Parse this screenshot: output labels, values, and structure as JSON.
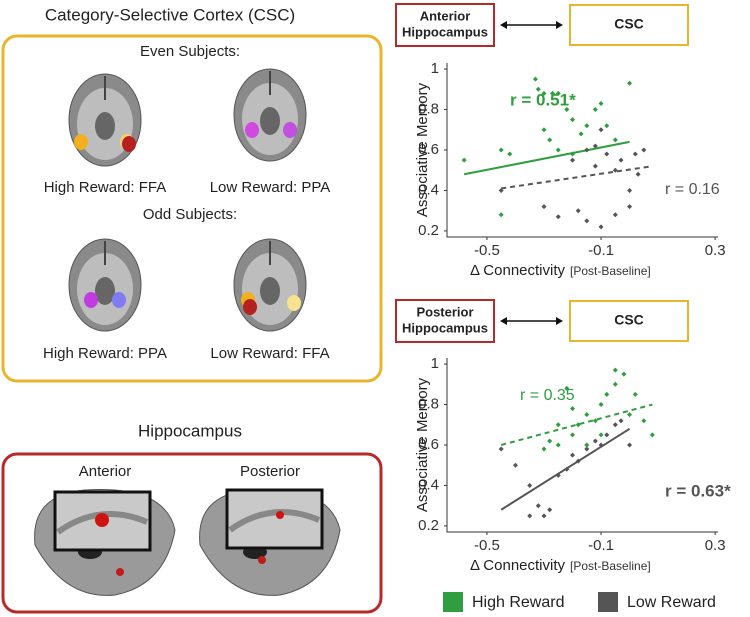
{
  "csc_panel": {
    "title": "Category-Selective Cortex (CSC)",
    "even": "Even Subjects:",
    "even_high": "High Reward: FFA",
    "even_low": "Low Reward: PPA",
    "odd": "Odd Subjects:",
    "odd_high": "High Reward: PPA",
    "odd_low": "Low Reward: FFA"
  },
  "hippo_panel": {
    "title": "Hippocampus",
    "anterior": "Anterior",
    "posterior": "Posterior"
  },
  "chart_data": [
    {
      "type": "scatter",
      "region": [
        "Anterior",
        "Hippocampus"
      ],
      "target": "CSC",
      "ylabel": "Associative Memory",
      "xlabel": "Δ Connectivity",
      "xlabel_note": "[Post-Baseline]",
      "xlim": [
        -0.64,
        0.31
      ],
      "ylim": [
        0.17,
        1.03
      ],
      "xticks": [
        -0.5,
        -0.1,
        0.3
      ],
      "yticks": [
        0.2,
        0.4,
        0.6,
        0.8,
        1
      ],
      "series": [
        {
          "name": "High Reward",
          "color": "#2e9e3e",
          "r_label": "r = 0.51*",
          "r_bold": true,
          "x": [
            -0.58,
            -0.45,
            -0.42,
            -0.33,
            -0.3,
            -0.27,
            -0.25,
            -0.3,
            -0.28,
            -0.22,
            -0.2,
            -0.17,
            -0.15,
            -0.12,
            -0.1,
            -0.08,
            -0.05,
            0.0,
            -0.25,
            -0.2,
            -0.45,
            -0.32
          ],
          "values": [
            0.55,
            0.6,
            0.58,
            0.95,
            0.88,
            0.88,
            0.88,
            0.7,
            0.65,
            0.8,
            0.75,
            0.68,
            0.72,
            0.8,
            0.83,
            0.72,
            0.65,
            0.93,
            0.6,
            0.58,
            0.28,
            0.9
          ],
          "fit": {
            "style": "solid",
            "x": [
              -0.58,
              0.0
            ],
            "y": [
              0.48,
              0.64
            ]
          }
        },
        {
          "name": "Low Reward",
          "color": "#555555",
          "r_label": "r = 0.16",
          "r_bold": false,
          "x": [
            -0.45,
            -0.3,
            -0.25,
            -0.2,
            -0.15,
            -0.12,
            -0.1,
            -0.08,
            -0.05,
            -0.03,
            0.0,
            0.02,
            0.05,
            -0.18,
            -0.15,
            -0.1,
            -0.05,
            0.0,
            -0.12,
            0.03
          ],
          "values": [
            0.4,
            0.32,
            0.27,
            0.55,
            0.6,
            0.62,
            0.7,
            0.58,
            0.5,
            0.55,
            0.4,
            0.58,
            0.6,
            0.3,
            0.25,
            0.22,
            0.28,
            0.32,
            0.52,
            0.48
          ],
          "fit": {
            "style": "dashed",
            "x": [
              -0.45,
              0.08
            ],
            "y": [
              0.41,
              0.52
            ]
          }
        }
      ]
    },
    {
      "type": "scatter",
      "region": [
        "Posterior",
        "Hippocampus"
      ],
      "target": "CSC",
      "ylabel": "Associative Memory",
      "xlabel": "Δ Connectivity",
      "xlabel_note": "[Post-Baseline]",
      "xlim": [
        -0.64,
        0.31
      ],
      "ylim": [
        0.17,
        1.03
      ],
      "xticks": [
        -0.5,
        -0.1,
        0.3
      ],
      "yticks": [
        0.2,
        0.4,
        0.6,
        0.8,
        1
      ],
      "series": [
        {
          "name": "High Reward",
          "color": "#2e9e3e",
          "r_label": "r = 0.35",
          "r_bold": false,
          "x": [
            -0.3,
            -0.28,
            -0.25,
            -0.2,
            -0.18,
            -0.15,
            -0.12,
            -0.1,
            -0.08,
            -0.05,
            -0.02,
            0.0,
            0.05,
            0.08,
            -0.2,
            -0.15,
            -0.25,
            -0.1,
            -0.05,
            0.02,
            -0.22
          ],
          "values": [
            0.58,
            0.62,
            0.6,
            0.65,
            0.7,
            0.75,
            0.72,
            0.8,
            0.85,
            0.9,
            0.95,
            0.75,
            0.72,
            0.65,
            0.78,
            0.6,
            0.7,
            0.65,
            0.97,
            0.85,
            0.88
          ],
          "fit": {
            "style": "dashed",
            "x": [
              -0.45,
              0.08
            ],
            "y": [
              0.6,
              0.8
            ]
          }
        },
        {
          "name": "Low Reward",
          "color": "#555555",
          "r_label": "r = 0.63*",
          "r_bold": true,
          "x": [
            -0.45,
            -0.4,
            -0.35,
            -0.32,
            -0.3,
            -0.28,
            -0.25,
            -0.22,
            -0.18,
            -0.15,
            -0.12,
            -0.1,
            -0.05,
            -0.03,
            0.0,
            -0.35,
            -0.2,
            -0.08
          ],
          "values": [
            0.58,
            0.5,
            0.4,
            0.3,
            0.25,
            0.28,
            0.45,
            0.48,
            0.52,
            0.58,
            0.62,
            0.6,
            0.7,
            0.72,
            0.6,
            0.25,
            0.55,
            0.65
          ],
          "fit": {
            "style": "solid",
            "x": [
              -0.45,
              0.0
            ],
            "y": [
              0.28,
              0.68
            ]
          }
        }
      ]
    }
  ]
}
